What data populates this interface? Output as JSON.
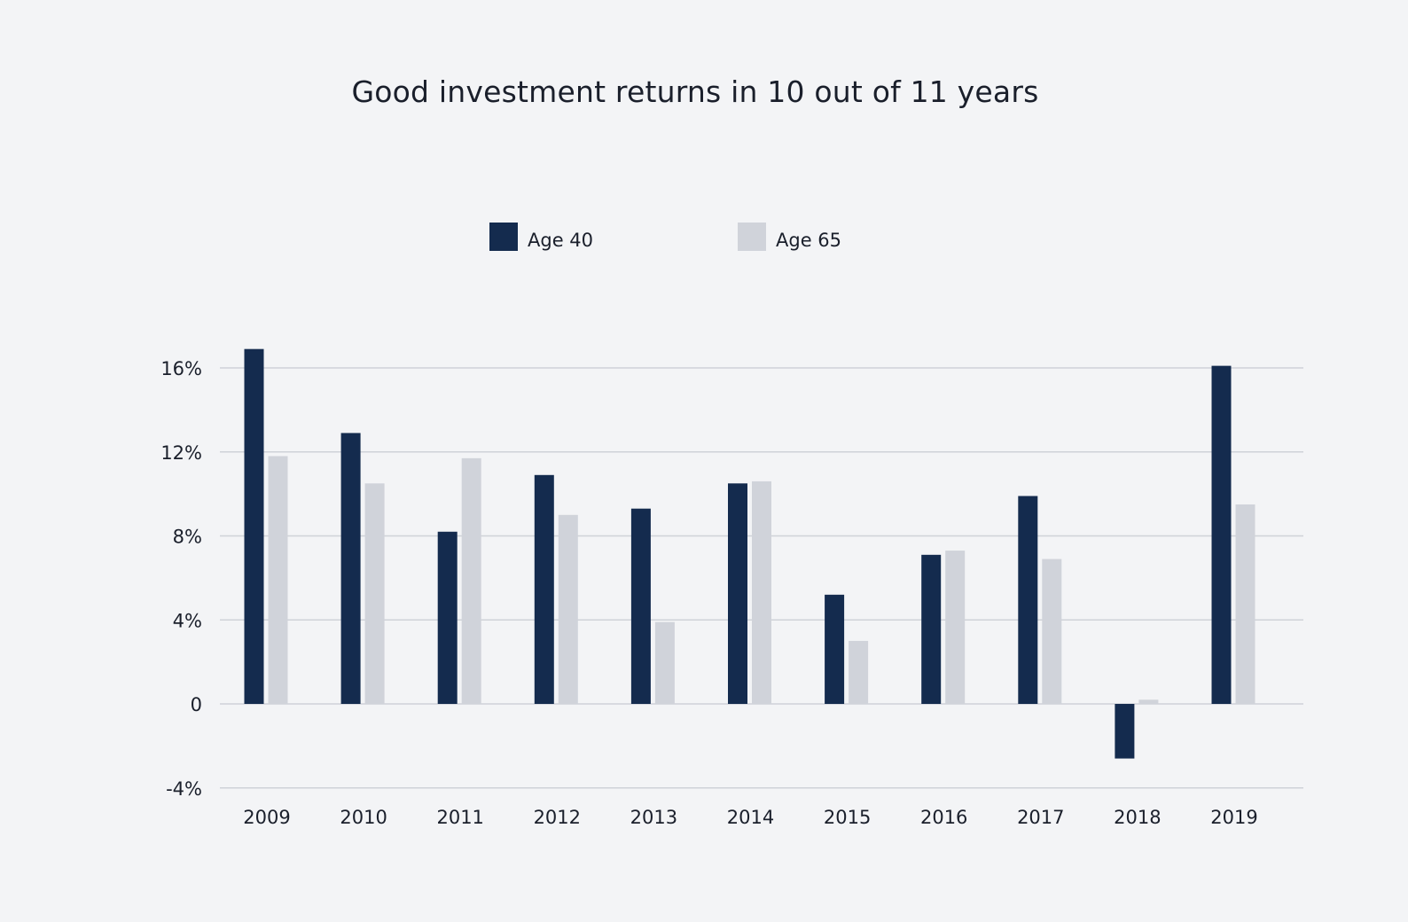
{
  "chart_data": {
    "type": "bar",
    "title": "Good investment returns in 10 out of 11 years",
    "xlabel": "",
    "ylabel": "",
    "categories": [
      "2009",
      "2010",
      "2011",
      "2012",
      "2013",
      "2014",
      "2015",
      "2016",
      "2017",
      "2018",
      "2019"
    ],
    "series": [
      {
        "name": "Age 40",
        "color": "#142b4e",
        "values": [
          16.9,
          12.9,
          8.2,
          10.9,
          9.3,
          10.5,
          5.2,
          7.1,
          9.9,
          -2.6,
          16.1
        ]
      },
      {
        "name": "Age 65",
        "color": "#d0d3da",
        "values": [
          11.8,
          10.5,
          11.7,
          9.0,
          3.9,
          10.6,
          3.0,
          7.3,
          6.9,
          0.2,
          9.5
        ]
      }
    ],
    "ylim": [
      -4,
      16
    ],
    "yticks": [
      {
        "value": 16,
        "label": "16%"
      },
      {
        "value": 12,
        "label": "12%"
      },
      {
        "value": 8,
        "label": "8%"
      },
      {
        "value": 4,
        "label": "4%"
      },
      {
        "value": 0,
        "label": "0"
      },
      {
        "value": -4,
        "label": "-4%"
      }
    ],
    "grid": true,
    "legend_position": "top-center"
  }
}
